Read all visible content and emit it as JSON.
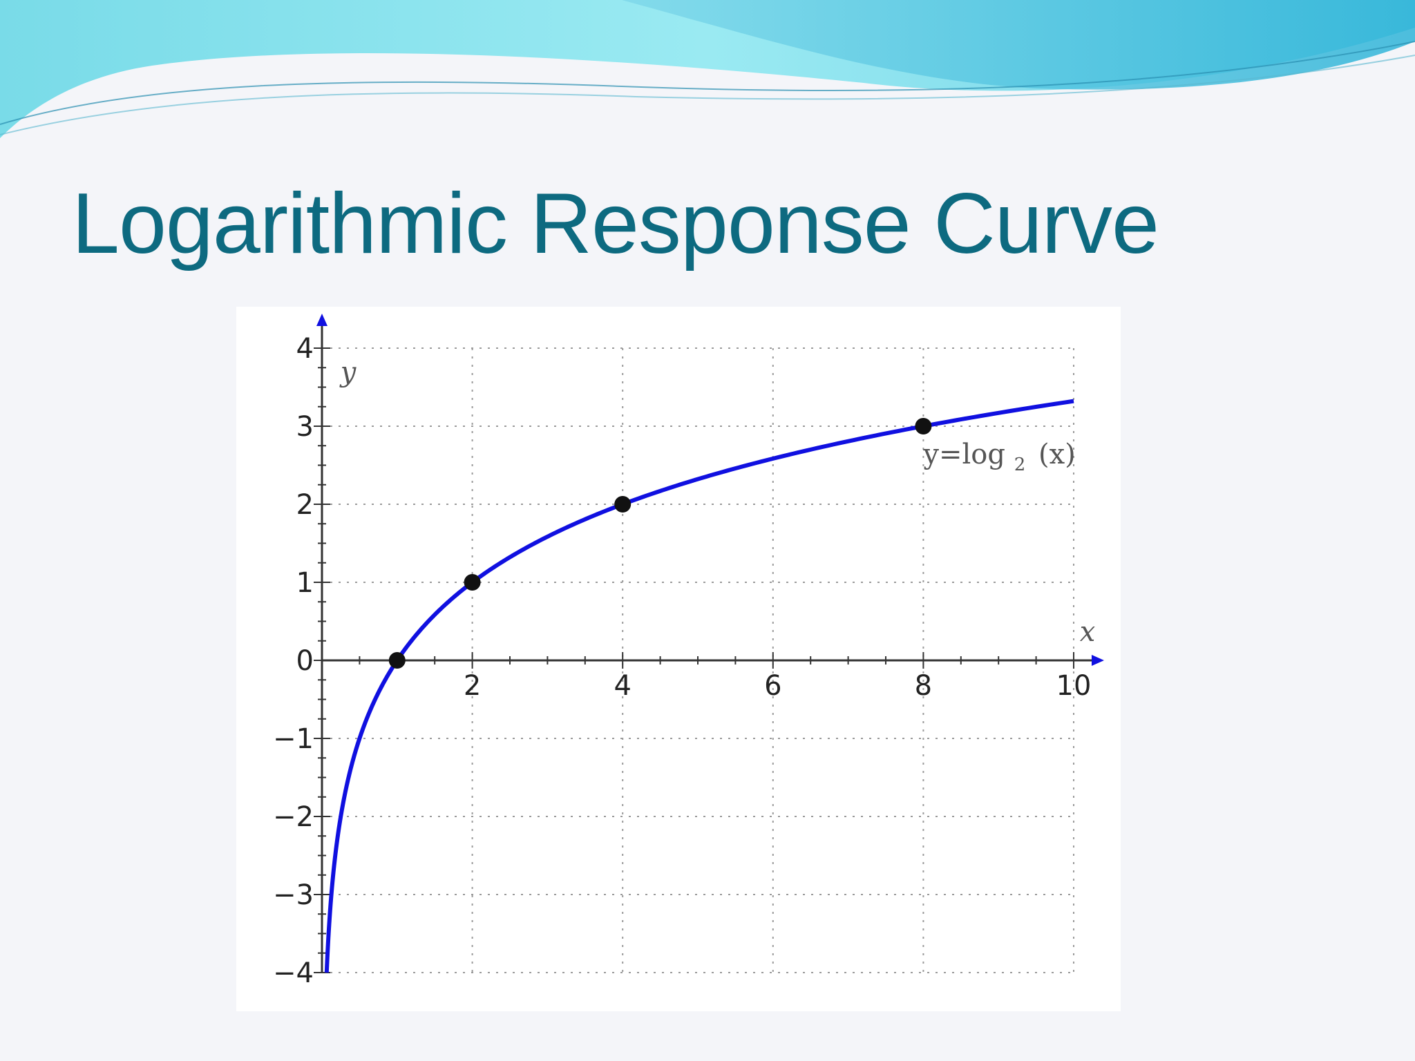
{
  "slide": {
    "title": "Logarithmic Response Curve",
    "colors": {
      "title": "#0d6a80",
      "wave_light": "#8fe6ee",
      "wave_dark": "#2ab3d6",
      "background": "#f4f5f9"
    }
  },
  "chart_data": {
    "type": "line",
    "title": "",
    "xlabel": "x",
    "ylabel": "y",
    "xlim": [
      0,
      10
    ],
    "ylim": [
      -4,
      4
    ],
    "grid": true,
    "x_ticks": [
      2,
      4,
      6,
      8,
      10
    ],
    "y_ticks": [
      -4,
      -3,
      -2,
      -1,
      0,
      1,
      2,
      3,
      4
    ],
    "x_tick_labels": [
      "2",
      "4",
      "6",
      "8",
      "10"
    ],
    "y_tick_labels": [
      "−4",
      "−3",
      "−2",
      "−1",
      "0",
      "1",
      "2",
      "3",
      "4"
    ],
    "series": [
      {
        "function": "log2",
        "color": "#1010e0",
        "x_range": [
          0.0625,
          10
        ],
        "annotation": {
          "base": "y=log",
          "subscript": "2",
          "suffix": "(x)"
        }
      }
    ],
    "points": [
      {
        "x": 1,
        "y": 0
      },
      {
        "x": 2,
        "y": 1
      },
      {
        "x": 4,
        "y": 2
      },
      {
        "x": 8,
        "y": 3
      }
    ]
  }
}
